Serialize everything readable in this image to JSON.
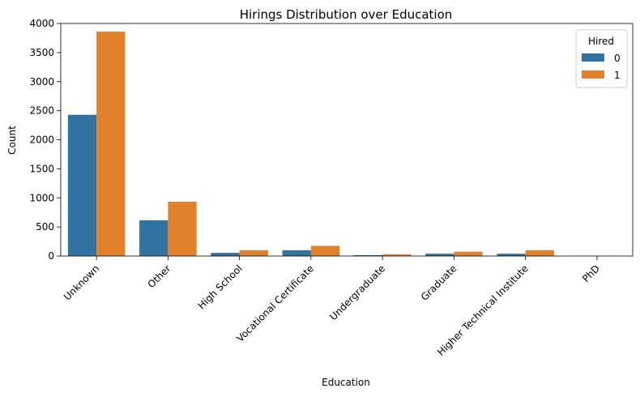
{
  "chart_data": {
    "type": "bar",
    "title": "Hirings Distribution over Education",
    "xlabel": "Education",
    "ylabel": "Count",
    "categories": [
      "Unknown",
      "Other",
      "High School",
      "Vocational Certificate",
      "Undergraduate",
      "Graduate",
      "Higher Technical Institute",
      "PhD"
    ],
    "series": [
      {
        "name": "0",
        "color": "#3274a1",
        "values": [
          2430,
          615,
          55,
          100,
          15,
          40,
          40,
          2
        ]
      },
      {
        "name": "1",
        "color": "#e1812c",
        "values": [
          3860,
          935,
          100,
          175,
          30,
          75,
          100,
          3
        ]
      }
    ],
    "ylim": [
      0,
      4000
    ],
    "yticks": [
      0,
      500,
      1000,
      1500,
      2000,
      2500,
      3000,
      3500,
      4000
    ],
    "legend": {
      "title": "Hired",
      "position": "top-right"
    },
    "grid": false
  }
}
